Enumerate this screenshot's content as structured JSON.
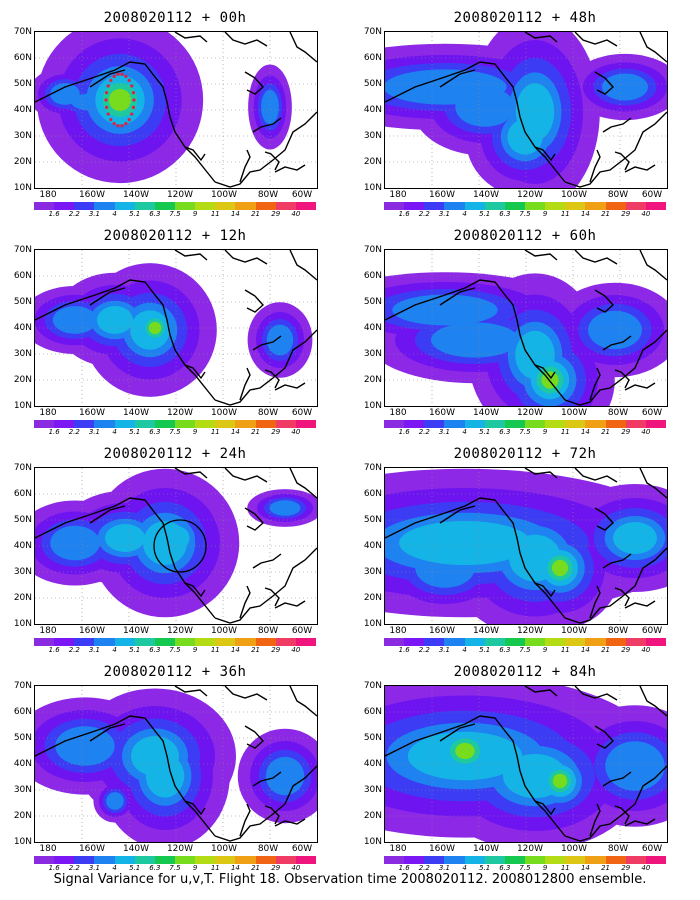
{
  "panels": [
    {
      "title": "2008020112 + 00h",
      "blobs": [
        [
          30,
          62,
          30,
          22,
          0.9
        ],
        [
          58,
          70,
          50,
          20,
          0.8
        ],
        [
          70,
          65,
          10,
          10,
          1.3
        ],
        [
          85,
          68,
          28,
          28,
          2.2
        ],
        [
          70,
          75,
          20,
          20,
          1.0
        ]
      ],
      "east": [
        [
          235,
          75,
          18,
          35,
          0.9
        ]
      ],
      "markers": "dots"
    },
    {
      "title": "2008020112 + 48h",
      "blobs": [
        [
          60,
          55,
          140,
          40,
          0.8
        ],
        [
          150,
          80,
          40,
          60,
          1.2
        ],
        [
          140,
          105,
          40,
          40,
          1.1
        ],
        [
          30,
          60,
          25,
          15,
          0.7
        ],
        [
          240,
          55,
          60,
          35,
          0.7
        ],
        [
          100,
          75,
          60,
          40,
          0.9
        ]
      ],
      "east": [],
      "markers": ""
    },
    {
      "title": "2008020112 + 12h",
      "blobs": [
        [
          40,
          70,
          45,
          28,
          0.9
        ],
        [
          80,
          70,
          45,
          35,
          1.0
        ],
        [
          115,
          80,
          45,
          45,
          1.1
        ],
        [
          120,
          78,
          20,
          20,
          1.7
        ],
        [
          245,
          90,
          30,
          35,
          0.8
        ]
      ],
      "east": [],
      "markers": ""
    },
    {
      "title": "2008020112 + 60h",
      "blobs": [
        [
          60,
          60,
          120,
          35,
          0.8
        ],
        [
          150,
          105,
          45,
          55,
          1.1
        ],
        [
          165,
          130,
          30,
          30,
          1.6
        ],
        [
          230,
          80,
          70,
          50,
          0.7
        ],
        [
          90,
          90,
          100,
          40,
          0.8
        ]
      ],
      "east": [],
      "markers": ""
    },
    {
      "title": "2008020112 + 24h",
      "blobs": [
        [
          40,
          75,
          50,
          35,
          0.9
        ],
        [
          90,
          70,
          50,
          35,
          1.0
        ],
        [
          130,
          75,
          50,
          50,
          1.1
        ],
        [
          140,
          70,
          28,
          24,
          1.3
        ],
        [
          250,
          40,
          40,
          20,
          0.7
        ]
      ],
      "east": [],
      "markers": "circle"
    },
    {
      "title": "2008020112 + 72h",
      "blobs": [
        [
          80,
          75,
          150,
          50,
          1.1
        ],
        [
          150,
          90,
          50,
          45,
          1.3
        ],
        [
          175,
          100,
          30,
          30,
          1.5
        ],
        [
          250,
          70,
          55,
          40,
          1.0
        ],
        [
          60,
          100,
          60,
          40,
          0.9
        ]
      ],
      "east": [],
      "markers": ""
    },
    {
      "title": "2008020112 + 36h",
      "blobs": [
        [
          50,
          60,
          60,
          40,
          0.9
        ],
        [
          120,
          70,
          60,
          50,
          1.0
        ],
        [
          130,
          90,
          40,
          45,
          1.2
        ],
        [
          80,
          115,
          20,
          20,
          0.8
        ],
        [
          250,
          90,
          50,
          50,
          0.7
        ]
      ],
      "east": [],
      "markers": ""
    },
    {
      "title": "2008020112 + 84h",
      "blobs": [
        [
          80,
          70,
          130,
          55,
          1.1
        ],
        [
          80,
          65,
          30,
          25,
          1.8
        ],
        [
          150,
          90,
          80,
          55,
          1.0
        ],
        [
          175,
          95,
          25,
          25,
          1.6
        ],
        [
          250,
          80,
          60,
          50,
          0.9
        ]
      ],
      "east": [],
      "markers": ""
    }
  ],
  "y_labels": [
    "70N",
    "60N",
    "50N",
    "40N",
    "30N",
    "20N",
    "10N"
  ],
  "x_labels": [
    "180",
    "160W",
    "140W",
    "120W",
    "100W",
    "80W",
    "60W"
  ],
  "colorbar": {
    "colors": [
      "#8a2be2",
      "#7b16f5",
      "#3c3cf5",
      "#1e82f0",
      "#14b4e6",
      "#1ec8a0",
      "#14c850",
      "#78dc1e",
      "#b4dc14",
      "#dcc814",
      "#f0a014",
      "#f06414",
      "#f03c64",
      "#f0147d"
    ],
    "ticks": [
      "1.6",
      "2.2",
      "3.1",
      "4",
      "5.1",
      "6.3",
      "7.5",
      "9",
      "11",
      "14",
      "21",
      "29",
      "40"
    ]
  },
  "caption": "Signal Variance for u,v,T. Flight 18. Observation time 2008020112. 2008012800 ensemble."
}
